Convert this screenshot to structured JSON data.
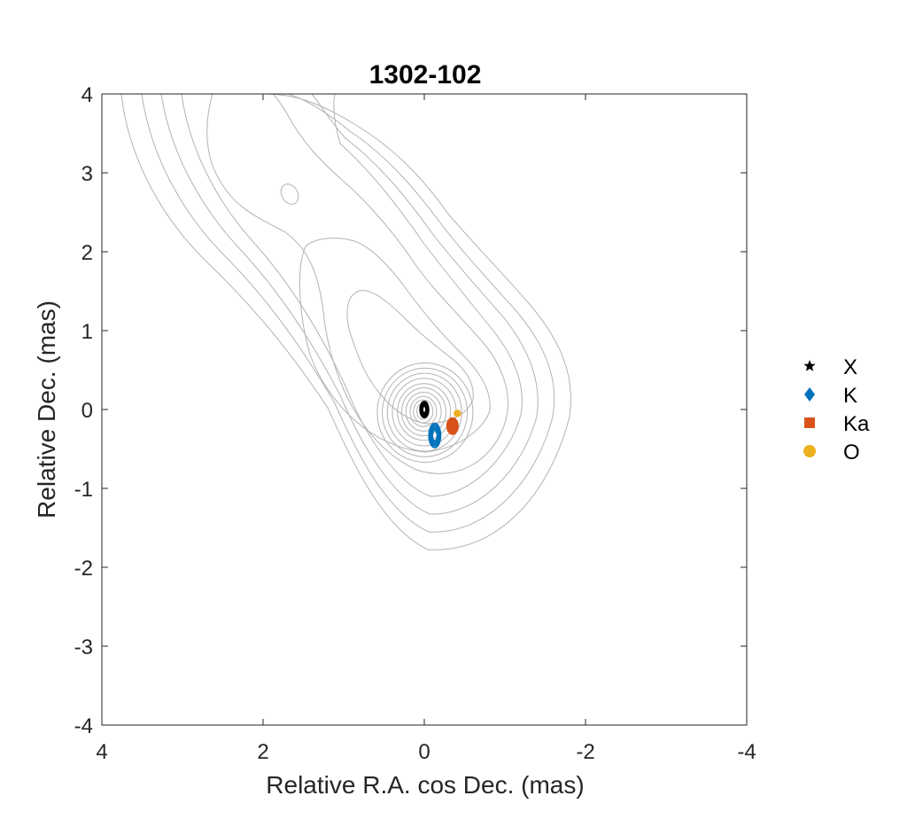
{
  "chart_data": {
    "type": "scatter",
    "title": "1302-102",
    "xlabel": "Relative R.A. cos Dec. (mas)",
    "ylabel": "Relative Dec. (mas)",
    "xlim": [
      4,
      -4
    ],
    "ylim": [
      -4,
      4
    ],
    "x_reversed": true,
    "xticks": [
      4,
      2,
      0,
      -2,
      -4
    ],
    "yticks": [
      4,
      3,
      2,
      1,
      0,
      -1,
      -2,
      -3,
      -4
    ],
    "xtick_labels": [
      "4",
      "2",
      "0",
      "-2",
      "-4"
    ],
    "ytick_labels": [
      "4",
      "3",
      "2",
      "1",
      "0",
      "-1",
      "-2",
      "-3",
      "-4"
    ],
    "grid": false,
    "legend_position": "right",
    "background_contours": {
      "color": "#b3b3b3",
      "description_levels": 16
    },
    "series": [
      {
        "name": "X",
        "marker": "star",
        "color": "#000000",
        "position": [
          0.0,
          0.0
        ],
        "error_ellipse": {
          "rx": 0.05,
          "ry": 0.1,
          "angle": 0
        }
      },
      {
        "name": "K",
        "marker": "diamond",
        "color": "#0072BD",
        "position": [
          -0.13,
          -0.33
        ],
        "error_ellipse": {
          "rx": 0.07,
          "ry": 0.15,
          "angle": 0
        }
      },
      {
        "name": "Ka",
        "marker": "square",
        "color": "#D95319",
        "position": [
          -0.35,
          -0.21
        ],
        "error_ellipse": {
          "rx": 0.065,
          "ry": 0.1,
          "angle": 0
        }
      },
      {
        "name": "O",
        "marker": "circle",
        "color": "#EDB120",
        "position": [
          -0.41,
          -0.05
        ],
        "error_ellipse": {
          "rx": 0.035,
          "ry": 0.035,
          "angle": 0
        }
      }
    ]
  }
}
